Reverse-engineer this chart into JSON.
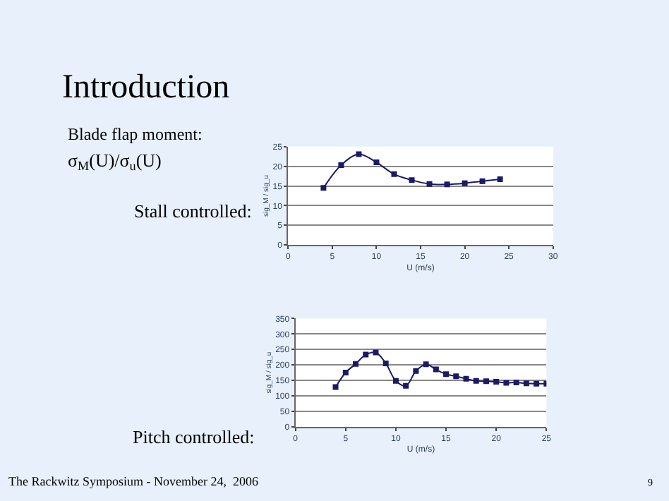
{
  "chart_data": [
    {
      "type": "line",
      "title": "Introduction",
      "subtitle": "Stall controlled:",
      "xlabel": "U (m/s)",
      "ylabel": "sig_M / sig_u",
      "annotations": [
        "Blade flap moment:",
        "σ$_{M}$(U)/σ$_{u}$(U)",
        "The Rackwitz Symposium - November 24,  2006",
        "9"
      ],
      "x": [
        4,
        6,
        8,
        10,
        12,
        14,
        16,
        18,
        20,
        22,
        24
      ],
      "series": [
        {
          "color": "#1a1a66",
          "values": [
            14.5,
            20.3,
            23.1,
            21,
            18,
            16.5,
            15.5,
            15.4,
            15.7,
            16.2,
            16.7
          ]
        }
      ],
      "xlim": [
        0,
        30
      ],
      "xticks": [
        0,
        5,
        10,
        15,
        20,
        25,
        30
      ],
      "ylim": [
        0,
        25
      ],
      "yticks": [
        0,
        5,
        10,
        15,
        20,
        25
      ],
      "grid": "y",
      "marker": "square",
      "line_style": "solid"
    },
    {
      "type": "line",
      "title": "Pitch controlled:",
      "xlabel": "U (m/s)",
      "ylabel": "sig_M / sig_u",
      "x": [
        4,
        5,
        6,
        7,
        8,
        9,
        10,
        11,
        12,
        13,
        14,
        15,
        16,
        17,
        18,
        19,
        20,
        21,
        22,
        23,
        24,
        25
      ],
      "series": [
        {
          "color": "#1a1a66",
          "values": [
            128,
            175,
            203,
            233,
            240,
            205,
            148,
            132,
            180,
            202,
            185,
            170,
            163,
            155,
            148,
            147,
            145,
            142,
            143,
            140,
            139,
            139
          ]
        }
      ],
      "xlim": [
        0,
        25
      ],
      "xticks": [
        0,
        5,
        10,
        15,
        20,
        25
      ],
      "ylim": [
        0,
        350
      ],
      "yticks": [
        0,
        50,
        100,
        150,
        200,
        250,
        300,
        350
      ],
      "grid": "y",
      "marker": "square",
      "line_style": "solid"
    }
  ]
}
